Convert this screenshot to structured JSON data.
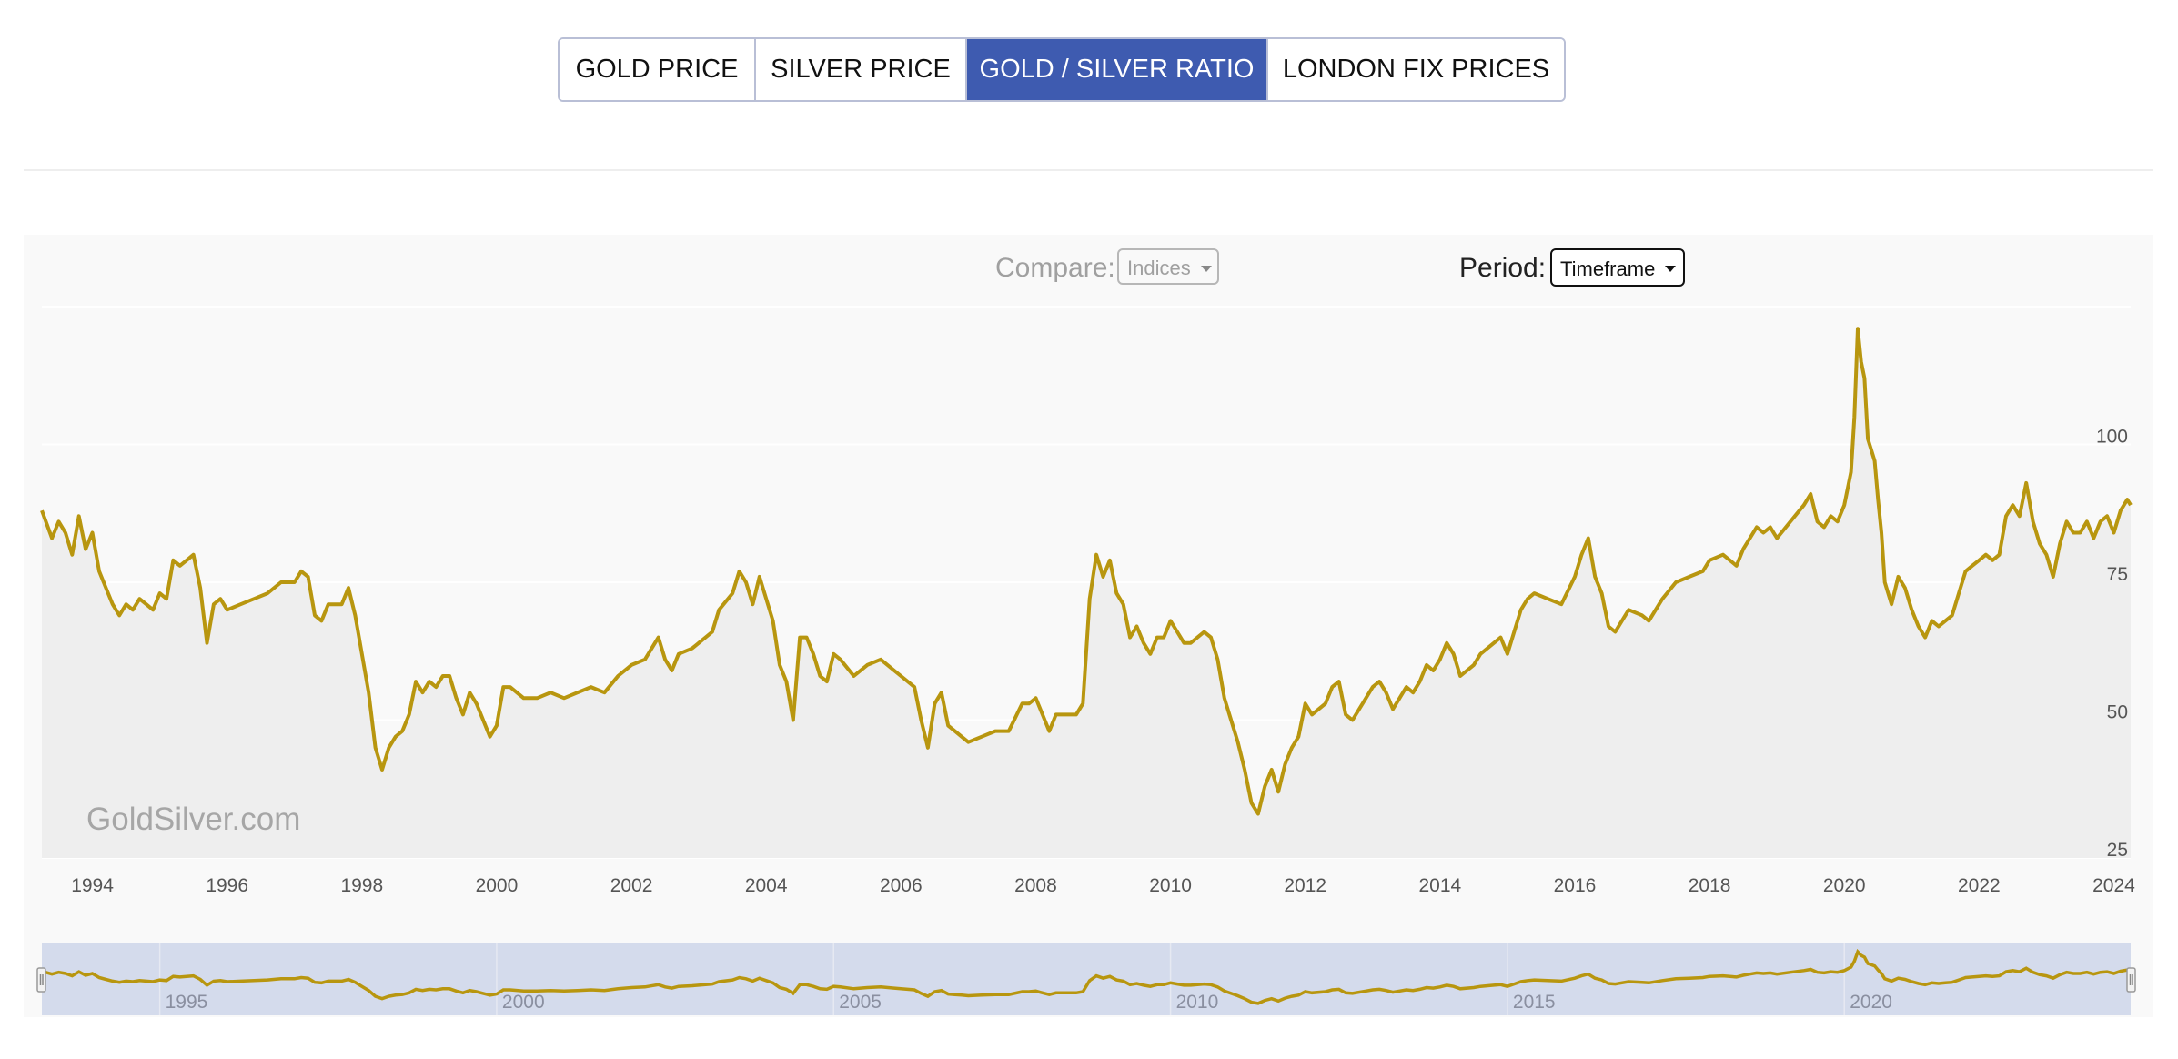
{
  "tabs": [
    {
      "label": "GOLD PRICE",
      "active": false
    },
    {
      "label": "SILVER PRICE",
      "active": false
    },
    {
      "label": "GOLD / SILVER RATIO",
      "active": true
    },
    {
      "label": "LONDON FIX PRICES",
      "active": false
    }
  ],
  "controls": {
    "compare_label": "Compare:",
    "compare_value": "Indices",
    "period_label": "Period:",
    "period_value": "Timeframe"
  },
  "watermark": "GoldSilver.com",
  "colors": {
    "line": "#b8960f",
    "accent": "#3e5bb0",
    "navigator_bg": "#d4dbec"
  },
  "chart_data": {
    "type": "line",
    "title": "",
    "series_name": "Gold / Silver Ratio",
    "xlabel": "",
    "ylabel": "",
    "xlim": [
      1993.25,
      2024.25
    ],
    "ylim": [
      25,
      126
    ],
    "y_ticks": [
      25,
      50,
      75,
      100
    ],
    "x_ticks": [
      1994,
      1996,
      1998,
      2000,
      2002,
      2004,
      2006,
      2008,
      2010,
      2012,
      2014,
      2016,
      2018,
      2020,
      2022,
      2024
    ],
    "navigator_ticks": [
      1995,
      2000,
      2005,
      2010,
      2015,
      2020
    ],
    "points": [
      [
        1993.25,
        88
      ],
      [
        1993.4,
        83
      ],
      [
        1993.5,
        86
      ],
      [
        1993.6,
        84
      ],
      [
        1993.7,
        80
      ],
      [
        1993.8,
        87
      ],
      [
        1993.9,
        81
      ],
      [
        1994.0,
        84
      ],
      [
        1994.1,
        77
      ],
      [
        1994.2,
        74
      ],
      [
        1994.3,
        71
      ],
      [
        1994.4,
        69
      ],
      [
        1994.5,
        71
      ],
      [
        1994.6,
        70
      ],
      [
        1994.7,
        72
      ],
      [
        1994.8,
        71
      ],
      [
        1994.9,
        70
      ],
      [
        1995.0,
        73
      ],
      [
        1995.1,
        72
      ],
      [
        1995.2,
        79
      ],
      [
        1995.3,
        78
      ],
      [
        1995.4,
        79
      ],
      [
        1995.5,
        80
      ],
      [
        1995.6,
        74
      ],
      [
        1995.7,
        64
      ],
      [
        1995.8,
        71
      ],
      [
        1995.9,
        72
      ],
      [
        1996.0,
        70
      ],
      [
        1996.2,
        71
      ],
      [
        1996.4,
        72
      ],
      [
        1996.6,
        73
      ],
      [
        1996.8,
        75
      ],
      [
        1997.0,
        75
      ],
      [
        1997.1,
        77
      ],
      [
        1997.2,
        76
      ],
      [
        1997.3,
        69
      ],
      [
        1997.4,
        68
      ],
      [
        1997.5,
        71
      ],
      [
        1997.7,
        71
      ],
      [
        1997.8,
        74
      ],
      [
        1997.9,
        69
      ],
      [
        1998.0,
        62
      ],
      [
        1998.1,
        55
      ],
      [
        1998.2,
        45
      ],
      [
        1998.3,
        41
      ],
      [
        1998.4,
        45
      ],
      [
        1998.5,
        47
      ],
      [
        1998.6,
        48
      ],
      [
        1998.7,
        51
      ],
      [
        1998.8,
        57
      ],
      [
        1998.9,
        55
      ],
      [
        1999.0,
        57
      ],
      [
        1999.1,
        56
      ],
      [
        1999.2,
        58
      ],
      [
        1999.3,
        58
      ],
      [
        1999.4,
        54
      ],
      [
        1999.5,
        51
      ],
      [
        1999.6,
        55
      ],
      [
        1999.7,
        53
      ],
      [
        1999.8,
        50
      ],
      [
        1999.9,
        47
      ],
      [
        2000.0,
        49
      ],
      [
        2000.1,
        56
      ],
      [
        2000.2,
        56
      ],
      [
        2000.4,
        54
      ],
      [
        2000.6,
        54
      ],
      [
        2000.8,
        55
      ],
      [
        2001.0,
        54
      ],
      [
        2001.2,
        55
      ],
      [
        2001.4,
        56
      ],
      [
        2001.6,
        55
      ],
      [
        2001.8,
        58
      ],
      [
        2002.0,
        60
      ],
      [
        2002.2,
        61
      ],
      [
        2002.4,
        65
      ],
      [
        2002.5,
        61
      ],
      [
        2002.6,
        59
      ],
      [
        2002.7,
        62
      ],
      [
        2002.9,
        63
      ],
      [
        2003.0,
        64
      ],
      [
        2003.2,
        66
      ],
      [
        2003.3,
        70
      ],
      [
        2003.5,
        73
      ],
      [
        2003.6,
        77
      ],
      [
        2003.7,
        75
      ],
      [
        2003.8,
        71
      ],
      [
        2003.9,
        76
      ],
      [
        2004.0,
        72
      ],
      [
        2004.1,
        68
      ],
      [
        2004.2,
        60
      ],
      [
        2004.3,
        57
      ],
      [
        2004.4,
        50
      ],
      [
        2004.5,
        65
      ],
      [
        2004.6,
        65
      ],
      [
        2004.7,
        62
      ],
      [
        2004.8,
        58
      ],
      [
        2004.9,
        57
      ],
      [
        2005.0,
        62
      ],
      [
        2005.1,
        61
      ],
      [
        2005.3,
        58
      ],
      [
        2005.5,
        60
      ],
      [
        2005.7,
        61
      ],
      [
        2005.9,
        59
      ],
      [
        2006.0,
        58
      ],
      [
        2006.2,
        56
      ],
      [
        2006.3,
        50
      ],
      [
        2006.4,
        45
      ],
      [
        2006.5,
        53
      ],
      [
        2006.6,
        55
      ],
      [
        2006.7,
        49
      ],
      [
        2006.8,
        48
      ],
      [
        2006.9,
        47
      ],
      [
        2007.0,
        46
      ],
      [
        2007.2,
        47
      ],
      [
        2007.4,
        48
      ],
      [
        2007.6,
        48
      ],
      [
        2007.8,
        53
      ],
      [
        2007.9,
        53
      ],
      [
        2008.0,
        54
      ],
      [
        2008.1,
        51
      ],
      [
        2008.2,
        48
      ],
      [
        2008.3,
        51
      ],
      [
        2008.5,
        51
      ],
      [
        2008.6,
        51
      ],
      [
        2008.7,
        53
      ],
      [
        2008.8,
        72
      ],
      [
        2008.9,
        80
      ],
      [
        2009.0,
        76
      ],
      [
        2009.1,
        79
      ],
      [
        2009.2,
        73
      ],
      [
        2009.3,
        71
      ],
      [
        2009.4,
        65
      ],
      [
        2009.5,
        67
      ],
      [
        2009.6,
        64
      ],
      [
        2009.7,
        62
      ],
      [
        2009.8,
        65
      ],
      [
        2009.9,
        65
      ],
      [
        2010.0,
        68
      ],
      [
        2010.1,
        66
      ],
      [
        2010.2,
        64
      ],
      [
        2010.3,
        64
      ],
      [
        2010.5,
        66
      ],
      [
        2010.6,
        65
      ],
      [
        2010.7,
        61
      ],
      [
        2010.8,
        54
      ],
      [
        2010.9,
        50
      ],
      [
        2011.0,
        46
      ],
      [
        2011.1,
        41
      ],
      [
        2011.2,
        35
      ],
      [
        2011.3,
        33
      ],
      [
        2011.4,
        38
      ],
      [
        2011.5,
        41
      ],
      [
        2011.6,
        37
      ],
      [
        2011.7,
        42
      ],
      [
        2011.8,
        45
      ],
      [
        2011.9,
        47
      ],
      [
        2012.0,
        53
      ],
      [
        2012.1,
        51
      ],
      [
        2012.3,
        53
      ],
      [
        2012.4,
        56
      ],
      [
        2012.5,
        57
      ],
      [
        2012.6,
        51
      ],
      [
        2012.7,
        50
      ],
      [
        2012.9,
        54
      ],
      [
        2013.0,
        56
      ],
      [
        2013.1,
        57
      ],
      [
        2013.2,
        55
      ],
      [
        2013.3,
        52
      ],
      [
        2013.4,
        54
      ],
      [
        2013.5,
        56
      ],
      [
        2013.6,
        55
      ],
      [
        2013.7,
        57
      ],
      [
        2013.8,
        60
      ],
      [
        2013.9,
        59
      ],
      [
        2014.0,
        61
      ],
      [
        2014.1,
        64
      ],
      [
        2014.2,
        62
      ],
      [
        2014.3,
        58
      ],
      [
        2014.5,
        60
      ],
      [
        2014.6,
        62
      ],
      [
        2014.8,
        64
      ],
      [
        2014.9,
        65
      ],
      [
        2015.0,
        62
      ],
      [
        2015.1,
        66
      ],
      [
        2015.2,
        70
      ],
      [
        2015.3,
        72
      ],
      [
        2015.4,
        73
      ],
      [
        2015.6,
        72
      ],
      [
        2015.8,
        71
      ],
      [
        2016.0,
        76
      ],
      [
        2016.1,
        80
      ],
      [
        2016.2,
        83
      ],
      [
        2016.3,
        76
      ],
      [
        2016.4,
        73
      ],
      [
        2016.5,
        67
      ],
      [
        2016.6,
        66
      ],
      [
        2016.8,
        70
      ],
      [
        2017.0,
        69
      ],
      [
        2017.1,
        68
      ],
      [
        2017.3,
        72
      ],
      [
        2017.5,
        75
      ],
      [
        2017.7,
        76
      ],
      [
        2017.9,
        77
      ],
      [
        2018.0,
        79
      ],
      [
        2018.2,
        80
      ],
      [
        2018.4,
        78
      ],
      [
        2018.5,
        81
      ],
      [
        2018.6,
        83
      ],
      [
        2018.7,
        85
      ],
      [
        2018.8,
        84
      ],
      [
        2018.9,
        85
      ],
      [
        2019.0,
        83
      ],
      [
        2019.2,
        86
      ],
      [
        2019.4,
        89
      ],
      [
        2019.5,
        91
      ],
      [
        2019.6,
        86
      ],
      [
        2019.7,
        85
      ],
      [
        2019.8,
        87
      ],
      [
        2019.9,
        86
      ],
      [
        2020.0,
        89
      ],
      [
        2020.1,
        95
      ],
      [
        2020.15,
        105
      ],
      [
        2020.2,
        121
      ],
      [
        2020.25,
        115
      ],
      [
        2020.3,
        112
      ],
      [
        2020.35,
        101
      ],
      [
        2020.4,
        99
      ],
      [
        2020.45,
        97
      ],
      [
        2020.5,
        90
      ],
      [
        2020.55,
        84
      ],
      [
        2020.6,
        75
      ],
      [
        2020.7,
        71
      ],
      [
        2020.8,
        76
      ],
      [
        2020.9,
        74
      ],
      [
        2021.0,
        70
      ],
      [
        2021.1,
        67
      ],
      [
        2021.2,
        65
      ],
      [
        2021.3,
        68
      ],
      [
        2021.4,
        67
      ],
      [
        2021.5,
        68
      ],
      [
        2021.6,
        69
      ],
      [
        2021.7,
        73
      ],
      [
        2021.8,
        77
      ],
      [
        2021.9,
        78
      ],
      [
        2022.0,
        79
      ],
      [
        2022.1,
        80
      ],
      [
        2022.2,
        79
      ],
      [
        2022.3,
        80
      ],
      [
        2022.4,
        87
      ],
      [
        2022.5,
        89
      ],
      [
        2022.6,
        87
      ],
      [
        2022.7,
        93
      ],
      [
        2022.8,
        86
      ],
      [
        2022.9,
        82
      ],
      [
        2023.0,
        80
      ],
      [
        2023.1,
        76
      ],
      [
        2023.2,
        82
      ],
      [
        2023.3,
        86
      ],
      [
        2023.4,
        84
      ],
      [
        2023.5,
        84
      ],
      [
        2023.6,
        86
      ],
      [
        2023.7,
        83
      ],
      [
        2023.8,
        86
      ],
      [
        2023.9,
        87
      ],
      [
        2024.0,
        84
      ],
      [
        2024.1,
        88
      ],
      [
        2024.2,
        90
      ],
      [
        2024.25,
        89
      ]
    ]
  }
}
